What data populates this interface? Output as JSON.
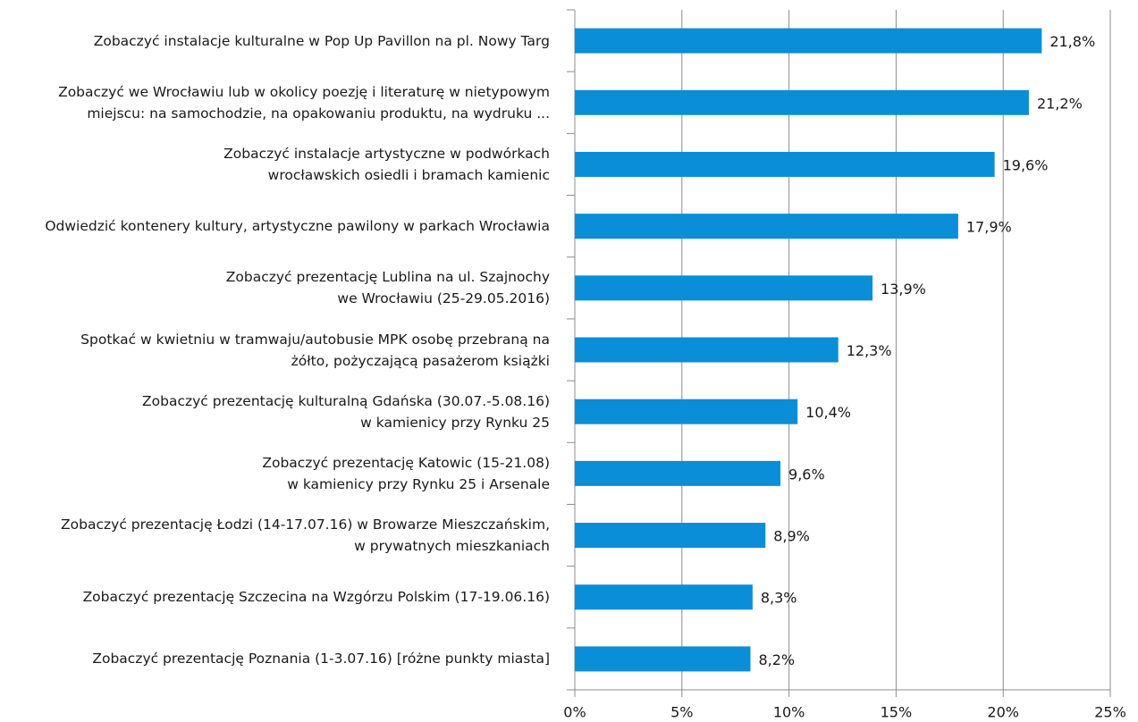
{
  "chart_data": {
    "type": "barh",
    "categories": [
      "Zobaczyć instalacje kulturalne w Pop Up Pavillon na pl. Nowy Targ",
      "Zobaczyć we Wrocławiu lub w okolicy poezję i literaturę w nietypowym\nmiejscu: na samochodzie, na opakowaniu produktu, na wydruku ...",
      "Zobaczyć instalacje artystyczne w podwórkach\nwrocławskich osiedli i bramach kamienic",
      "Odwiedzić kontenery kultury, artystyczne pawilony w parkach Wrocławia",
      "Zobaczyć prezentację Lublina na ul. Szajnochy\nwe Wrocławiu (25-29.05.2016)",
      "Spotkać w kwietniu w tramwaju/autobusie MPK osobę przebraną na\nżółto, pożyczającą pasażerom książki",
      "Zobaczyć prezentację kulturalną Gdańska (30.07.-5.08.16)\nw kamienicy przy Rynku 25",
      "Zobaczyć prezentację Katowic (15-21.08)\nw kamienicy przy Rynku 25 i Arsenale",
      "Zobaczyć prezentację Łodzi (14-17.07.16) w Browarze Mieszczańskim,\nw prywatnych mieszkaniach",
      "Zobaczyć prezentację Szczecina na Wzgórzu Polskim (17-19.06.16)",
      "Zobaczyć prezentację Poznania (1-3.07.16) [różne punkty miasta]"
    ],
    "values": [
      21.8,
      21.2,
      19.6,
      17.9,
      13.9,
      12.3,
      10.4,
      9.6,
      8.9,
      8.3,
      8.2
    ],
    "value_labels": [
      "21,8%",
      "21,2%",
      "19,6%",
      "17,9%",
      "13,9%",
      "12,3%",
      "10,4%",
      "9,6%",
      "8,9%",
      "8,3%",
      "8,2%"
    ],
    "color": "#0b8ed8",
    "xlim": [
      0,
      25
    ],
    "xticks": [
      {
        "value": 0,
        "label": "0%"
      },
      {
        "value": 5,
        "label": "5%"
      },
      {
        "value": 10,
        "label": "10%"
      },
      {
        "value": 15,
        "label": "15%"
      },
      {
        "value": 20,
        "label": "20%"
      },
      {
        "value": 25,
        "label": "25%"
      }
    ],
    "grid": true
  }
}
